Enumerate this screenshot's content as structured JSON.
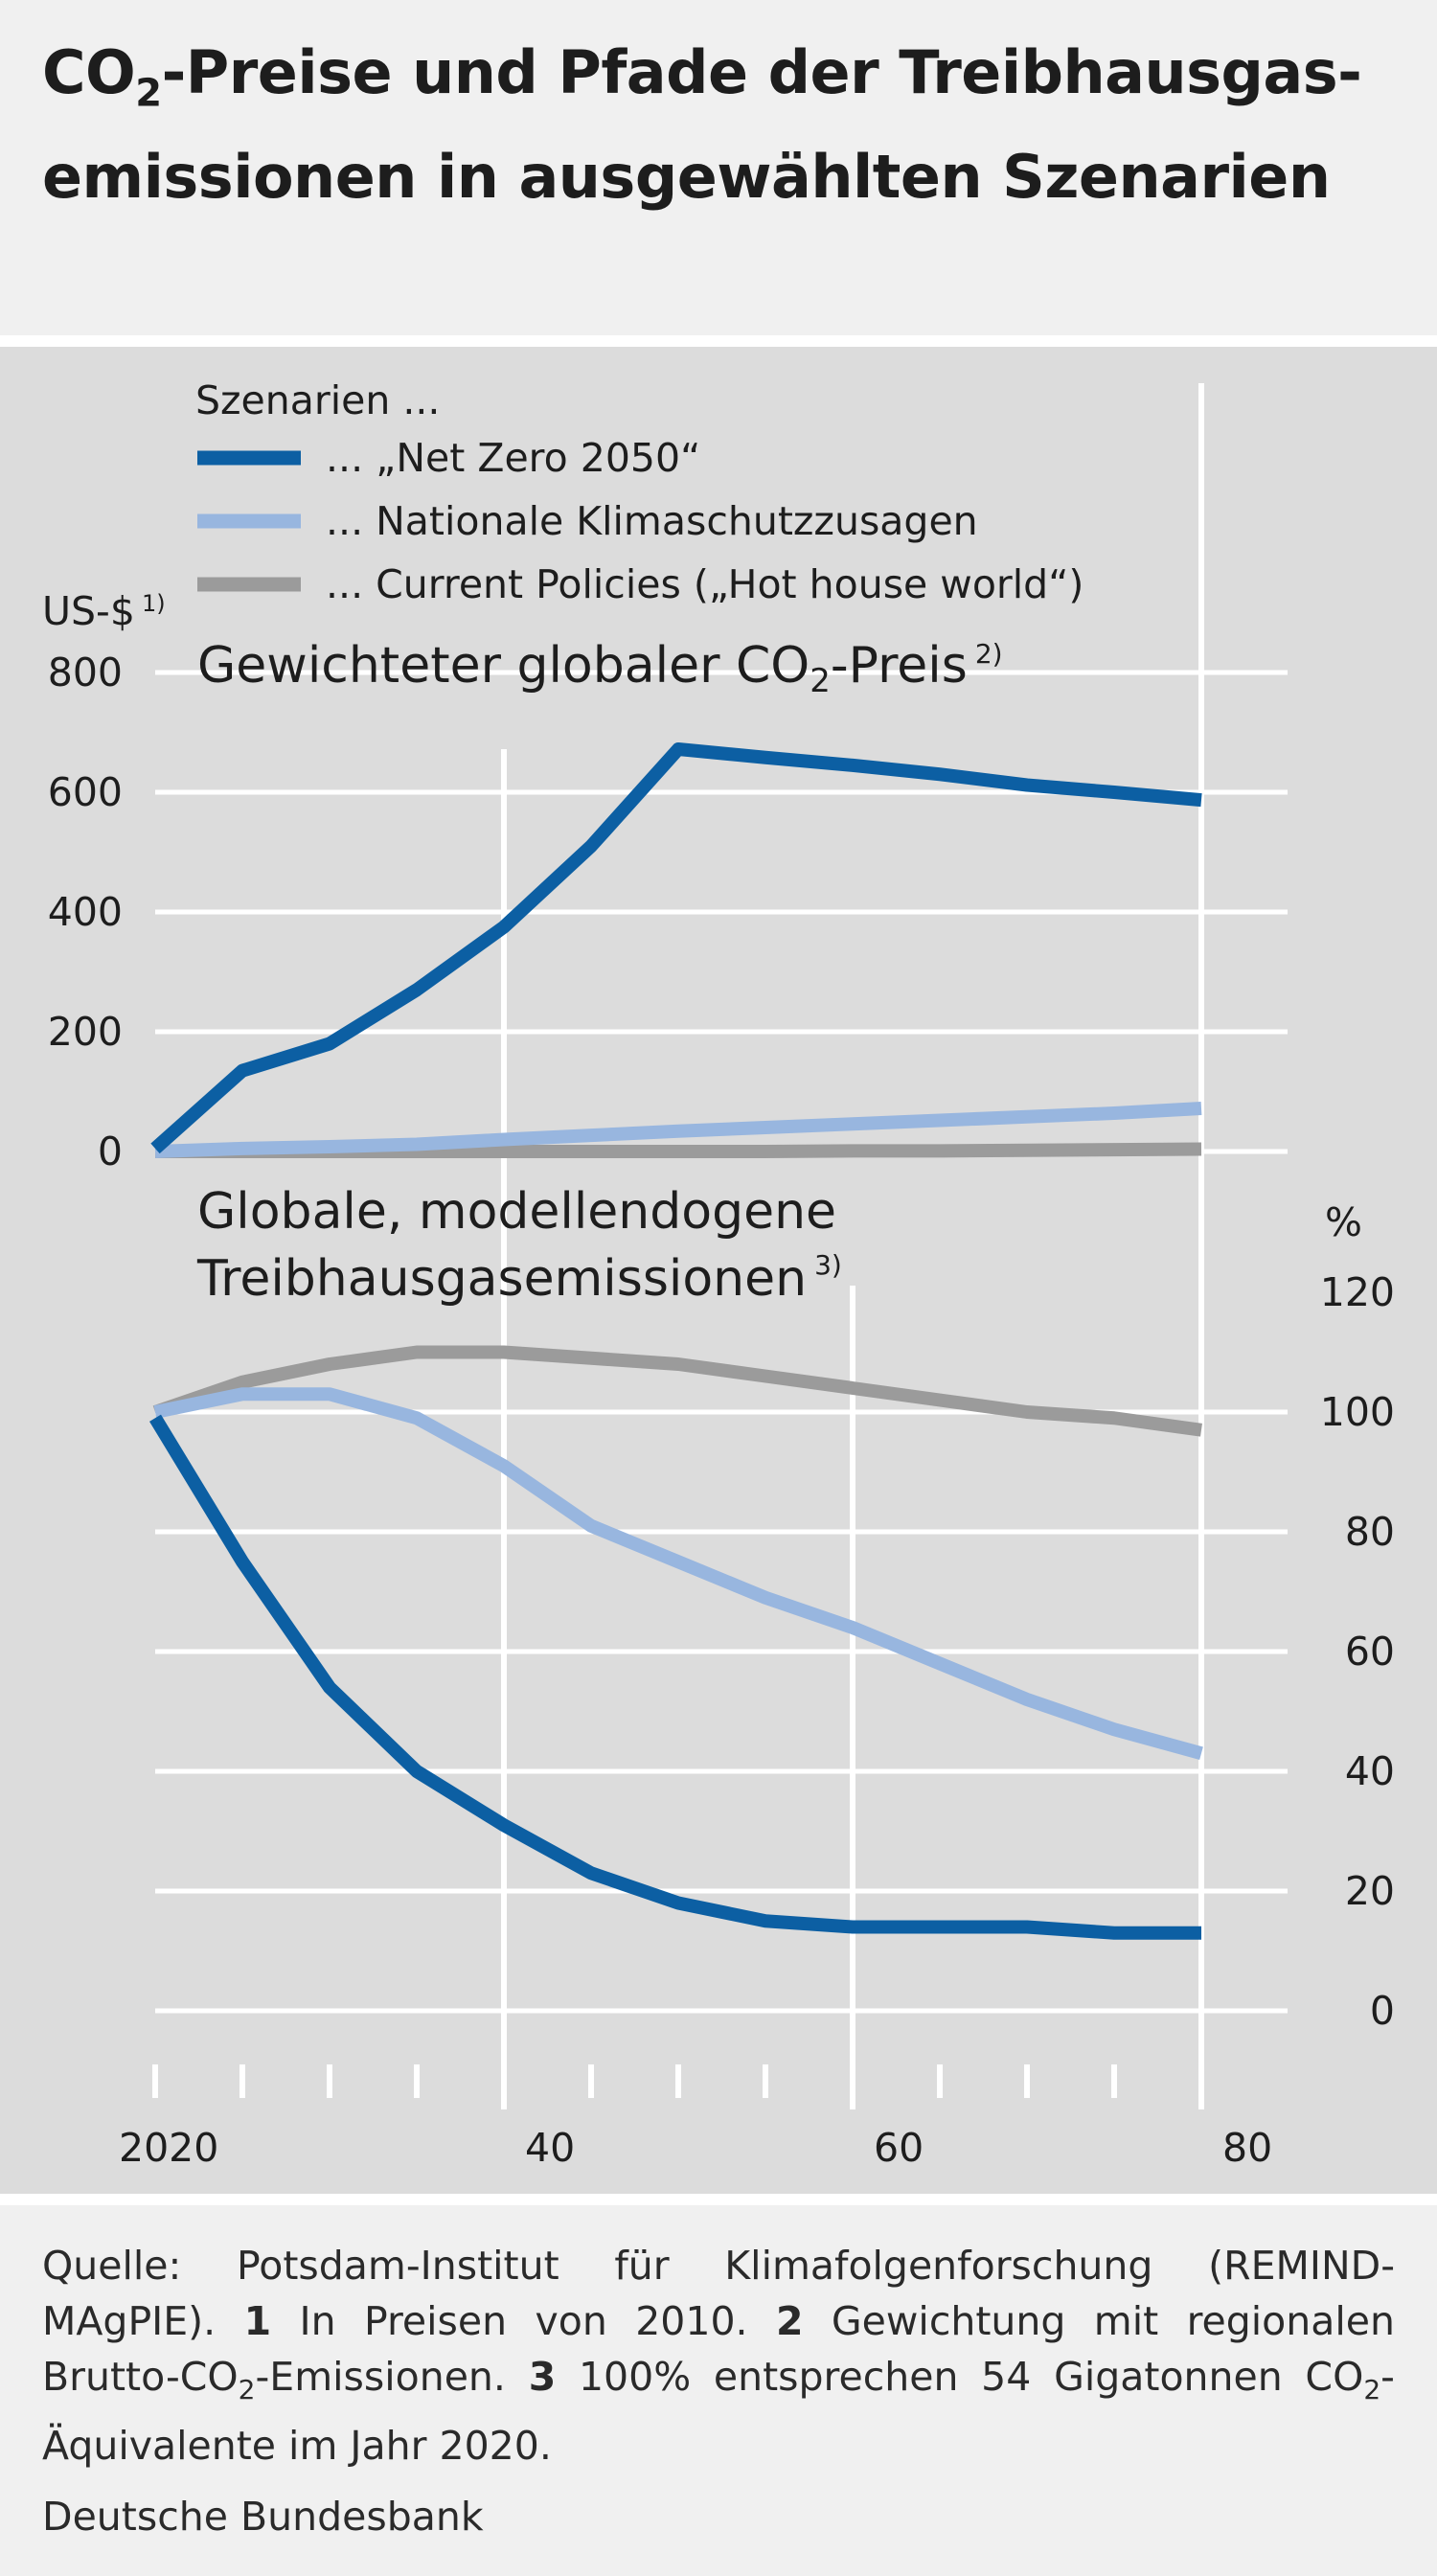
{
  "title": {
    "part1": "CO",
    "sub": "2",
    "part2": "-Preise und Pfade der Treibhausgas-",
    "line2": "emissionen in ausgewählten Szenarien"
  },
  "legend": {
    "header": "Szenarien ...",
    "items": [
      {
        "label": "... „Net Zero 2050“",
        "color": "#0c5fa3"
      },
      {
        "label": "... Nationale Klimaschutzzusagen",
        "color": "#98b6df"
      },
      {
        "label": "... Current Policies („Hot house world“)",
        "color": "#9b9b9b"
      }
    ]
  },
  "chart_data": [
    {
      "type": "line",
      "title_parts": {
        "main": "Gewichteter globaler CO",
        "sub": "2",
        "rest": "-Preis",
        "note": "2)"
      },
      "ylabel": "US-$",
      "ylabel_note": "1)",
      "ylim": [
        0,
        800
      ],
      "yticks": [
        "0",
        "200",
        "400",
        "600",
        "800"
      ],
      "x": [
        2020,
        2025,
        2030,
        2035,
        2040,
        2045,
        2050,
        2055,
        2060,
        2065,
        2070,
        2075,
        2080
      ],
      "series": [
        {
          "name": "... „Net Zero 2050“",
          "color": "#0c5fa3",
          "values": [
            5,
            135,
            180,
            270,
            375,
            510,
            672,
            658,
            645,
            630,
            612,
            600,
            587
          ]
        },
        {
          "name": "... Nationale Klimaschutzzusagen",
          "color": "#98b6df",
          "values": [
            0,
            5,
            8,
            12,
            20,
            27,
            34,
            40,
            46,
            52,
            58,
            64,
            72
          ]
        },
        {
          "name": "... Current Policies („Hot house world“)",
          "color": "#9b9b9b",
          "values": [
            0,
            0,
            0,
            0,
            0,
            0,
            0,
            0,
            1,
            1,
            2,
            3,
            4
          ]
        }
      ]
    },
    {
      "type": "line",
      "title_line1": "Globale, modellendogene",
      "title_line2": "Treibhausgasemissionen",
      "title_note": "3)",
      "ylabel": "%",
      "ylim": [
        0,
        120
      ],
      "yticks": [
        "0",
        "20",
        "40",
        "60",
        "80",
        "100",
        "120"
      ],
      "x": [
        2020,
        2025,
        2030,
        2035,
        2040,
        2045,
        2050,
        2055,
        2060,
        2065,
        2070,
        2075,
        2080
      ],
      "series": [
        {
          "name": "... „Net Zero 2050“",
          "color": "#0c5fa3",
          "values": [
            99,
            75,
            54,
            40,
            31,
            23,
            18,
            15,
            14,
            14,
            14,
            13,
            13
          ]
        },
        {
          "name": "... Nationale Klimaschutzzusagen",
          "color": "#98b6df",
          "values": [
            100,
            103,
            103,
            99,
            91,
            81,
            75,
            69,
            64,
            58,
            52,
            47,
            43
          ]
        },
        {
          "name": "... Current Policies („Hot house world“)",
          "color": "#9b9b9b",
          "values": [
            100,
            105,
            108,
            110,
            110,
            109,
            108,
            106,
            104,
            102,
            100,
            99,
            97
          ]
        }
      ]
    }
  ],
  "xaxis": {
    "tick_labels": [
      "2020",
      "40",
      "60",
      "80"
    ]
  },
  "source": {
    "prefix": "Quelle: Potsdam-Institut für Klimafolgenforschung (REMIND-MAgPIE).",
    "n1": "1",
    "t1": "In Preisen von 2010.",
    "n2": "2",
    "t2a": "Gewichtung mit regionalen Brutto-CO",
    "t2sub": "2",
    "t2b": "-Emissionen.",
    "n3": "3",
    "t3a": "100% entsprechen 54 Gigatonnen CO",
    "t3sub": "2",
    "t3b": "-Äquivalente im Jahr 2020."
  },
  "publisher": "Deutsche Bundesbank"
}
